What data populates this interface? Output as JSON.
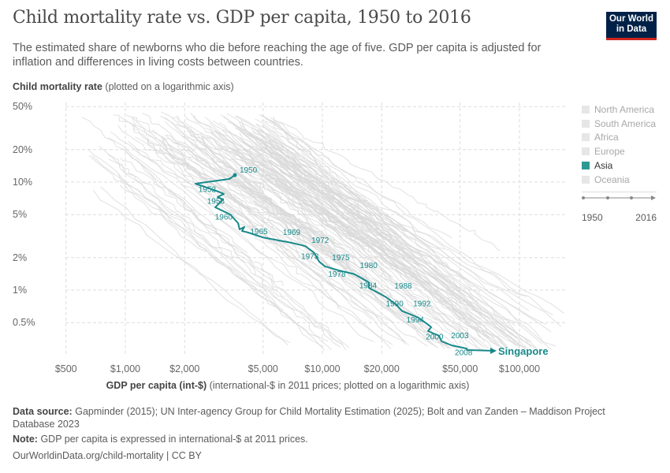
{
  "header": {
    "title": "Child mortality rate vs. GDP per capita, 1950 to 2016",
    "subtitle": "The estimated share of newborns who die before reaching the age of five. GDP per capita is adjusted for inflation and differences in living costs between countries.",
    "logo_text": "Our World in Data"
  },
  "legend": {
    "items": [
      {
        "label": "North America",
        "active": false
      },
      {
        "label": "South America",
        "active": false
      },
      {
        "label": "Africa",
        "active": false
      },
      {
        "label": "Europe",
        "active": false
      },
      {
        "label": "Asia",
        "active": true
      },
      {
        "label": "Oceania",
        "active": false
      }
    ],
    "timeline_start": "1950",
    "timeline_end": "2016"
  },
  "colors": {
    "highlight": "#18898a",
    "background_lines": "#d9d9d9",
    "logo_bg": "#002147",
    "logo_accent": "#ce261e"
  },
  "chart_data": {
    "type": "line",
    "title": "Child mortality rate vs. GDP per capita, 1950 to 2016",
    "ylabel_bold": "Child mortality rate",
    "ylabel_note": "(plotted on a logarithmic axis)",
    "xlabel_bold": "GDP per capita (int-$)",
    "xlabel_note": "(international-$ in 2011 prices; plotted on a logarithmic axis)",
    "x_scale": "log",
    "y_scale": "log",
    "xlim": [
      400,
      140000
    ],
    "ylim": [
      0.21,
      58
    ],
    "grid": true,
    "x_ticks": [
      {
        "v": 500,
        "label": "$500"
      },
      {
        "v": 1000,
        "label": "$1,000"
      },
      {
        "v": 2000,
        "label": "$2,000"
      },
      {
        "v": 5000,
        "label": "$5,000"
      },
      {
        "v": 10000,
        "label": "$10,000"
      },
      {
        "v": 20000,
        "label": "$20,000"
      },
      {
        "v": 50000,
        "label": "$50,000"
      },
      {
        "v": 100000,
        "label": "$100,000"
      }
    ],
    "y_ticks": [
      {
        "v": 50,
        "label": "50%"
      },
      {
        "v": 20,
        "label": "20%"
      },
      {
        "v": 10,
        "label": "10%"
      },
      {
        "v": 5,
        "label": "5%"
      },
      {
        "v": 2,
        "label": "2%"
      },
      {
        "v": 1,
        "label": "1%"
      },
      {
        "v": 0.5,
        "label": "0.5%"
      }
    ],
    "highlighted_series": {
      "name": "Singapore",
      "points": [
        [
          3597,
          11.6
        ],
        [
          3373,
          10.7
        ],
        [
          2270,
          9.67
        ],
        [
          2965,
          8.17
        ],
        [
          3162,
          7.77
        ],
        [
          2938,
          7.27
        ],
        [
          3133,
          6.91
        ],
        [
          2858,
          5.84
        ],
        [
          3404,
          5.02
        ],
        [
          3733,
          4.17
        ],
        [
          3802,
          3.65
        ],
        [
          4018,
          3.84
        ],
        [
          3909,
          3.53
        ],
        [
          4207,
          3.41
        ],
        [
          4966,
          3.08
        ],
        [
          6982,
          2.74
        ],
        [
          8166,
          2.56
        ],
        [
          9036,
          2.24
        ],
        [
          9638,
          1.83
        ],
        [
          10280,
          1.66
        ],
        [
          12130,
          1.52
        ],
        [
          14190,
          1.42
        ],
        [
          14590,
          1.4
        ],
        [
          17220,
          1.18
        ],
        [
          17220,
          1.05
        ],
        [
          21090,
          0.86
        ],
        [
          23770,
          0.73
        ],
        [
          25350,
          0.64
        ],
        [
          30480,
          0.56
        ],
        [
          34360,
          0.48
        ],
        [
          35650,
          0.454
        ],
        [
          34360,
          0.417
        ],
        [
          39080,
          0.377
        ],
        [
          40180,
          0.336
        ],
        [
          45290,
          0.308
        ],
        [
          53950,
          0.288
        ],
        [
          54450,
          0.279
        ],
        [
          75160,
          0.274
        ]
      ],
      "year_labels": [
        {
          "year": "1950",
          "gdp": 3800,
          "cm": 12.2
        },
        {
          "year": "1952",
          "gdp": 2350,
          "cm": 8.1
        },
        {
          "year": "1956",
          "gdp": 2600,
          "cm": 6.3
        },
        {
          "year": "1960",
          "gdp": 2850,
          "cm": 4.5
        },
        {
          "year": "1965",
          "gdp": 4300,
          "cm": 3.3
        },
        {
          "year": "1969",
          "gdp": 6300,
          "cm": 3.25
        },
        {
          "year": "1972",
          "gdp": 8800,
          "cm": 2.75
        },
        {
          "year": "1973",
          "gdp": 7800,
          "cm": 1.95
        },
        {
          "year": "1975",
          "gdp": 11200,
          "cm": 1.9
        },
        {
          "year": "1978",
          "gdp": 10700,
          "cm": 1.33
        },
        {
          "year": "1980",
          "gdp": 15500,
          "cm": 1.6
        },
        {
          "year": "1984",
          "gdp": 15400,
          "cm": 1.04
        },
        {
          "year": "1988",
          "gdp": 23200,
          "cm": 1.03
        },
        {
          "year": "1990",
          "gdp": 21000,
          "cm": 0.71
        },
        {
          "year": "1992",
          "gdp": 28900,
          "cm": 0.71
        },
        {
          "year": "1994",
          "gdp": 26700,
          "cm": 0.5
        },
        {
          "year": "2000",
          "gdp": 33500,
          "cm": 0.35
        },
        {
          "year": "2003",
          "gdp": 45000,
          "cm": 0.36
        },
        {
          "year": "2008",
          "gdp": 47000,
          "cm": 0.25
        }
      ]
    }
  },
  "footer": {
    "source_label": "Data source:",
    "source_text": "Gapminder (2015); UN Inter-agency Group for Child Mortality Estimation (2025); Bolt and van Zanden – Maddison Project Database 2023",
    "note_label": "Note:",
    "note_text": "GDP per capita is expressed in international-$ at 2011 prices.",
    "link": "OurWorldinData.org/child-mortality | CC BY"
  }
}
